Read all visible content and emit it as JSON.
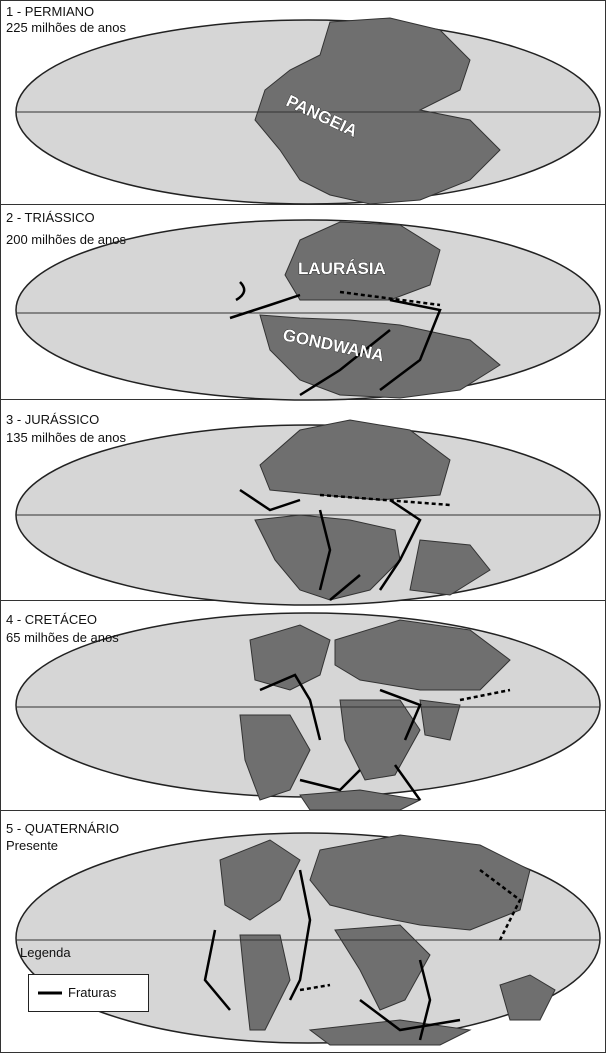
{
  "panels": [
    {
      "title": "1 - PERMIANO",
      "subtitle": "225 milhões de anos",
      "labels": [
        "PANGEIA"
      ]
    },
    {
      "title": "2 - TRIÁSSICO",
      "subtitle": "200 milhões de anos",
      "labels": [
        "LAURÁSIA",
        "GONDWANA"
      ]
    },
    {
      "title": "3 - JURÁSSICO",
      "subtitle": "135 milhões de anos",
      "labels": []
    },
    {
      "title": "4 - CRETÁCEO",
      "subtitle": "65 milhões de anos",
      "labels": []
    },
    {
      "title": "5 - QUATERNÁRIO",
      "subtitle": "Presente",
      "labels": []
    }
  ],
  "legend": {
    "title": "Legenda",
    "item": "Fraturas"
  }
}
